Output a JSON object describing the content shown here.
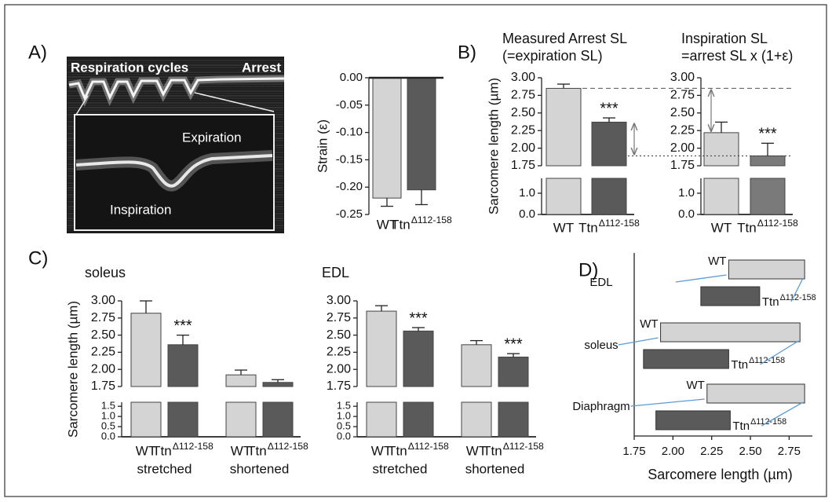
{
  "panel_labels": [
    "A)",
    "B)",
    "C)",
    "D)"
  ],
  "image": {
    "labels": [
      "Respiration cycles",
      "Arrest",
      "Expiration",
      "Inspiration"
    ]
  },
  "chart_data": [
    {
      "type": "bar",
      "ylabel": "Strain (ε)",
      "categories": [
        "WT",
        [
          "Ttn",
          "Δ112-158"
        ]
      ],
      "values": [
        -0.22,
        -0.205
      ],
      "errors": [
        0.015,
        0.027
      ],
      "colors": [
        "#d4d4d4",
        "#5a5a5a"
      ],
      "ylim": [
        -0.25,
        0
      ],
      "yticks": [
        {
          "value": 0,
          "label": "0.00"
        },
        {
          "value": -0.05,
          "label": "-0.05"
        },
        {
          "value": -0.1,
          "label": "-0.10"
        },
        {
          "value": -0.15,
          "label": "-0.15"
        },
        {
          "value": -0.2,
          "label": "-0.20"
        },
        {
          "value": -0.25,
          "label": "-0.25"
        }
      ]
    },
    {
      "type": "broken_bar",
      "title": [
        "Measured Arrest SL",
        "(=expiration SL)"
      ],
      "ylabel": "Sarcomere length (µm)",
      "categories": [
        "WT",
        [
          "Ttn",
          "Δ112-158"
        ]
      ],
      "values": [
        2.85,
        2.37
      ],
      "errors": [
        0.06,
        0.06
      ],
      "annotations": [
        null,
        "***"
      ],
      "colors": [
        "#d4d4d4",
        "#5a5a5a"
      ],
      "ylim": [
        1.75,
        3.0
      ],
      "ylim_lower": [
        0,
        1.7
      ],
      "yticks": [
        {
          "value": 1.75,
          "label": "1.75"
        },
        {
          "value": 2,
          "label": "2.00"
        },
        {
          "value": 2.25,
          "label": "2.25"
        },
        {
          "value": 2.5,
          "label": "2.50"
        },
        {
          "value": 2.75,
          "label": "2.75"
        },
        {
          "value": 3,
          "label": "3.00"
        }
      ],
      "yticks_lower": [
        {
          "value": 0,
          "label": "0.0"
        },
        {
          "value": 1,
          "label": "1.0"
        }
      ]
    },
    {
      "type": "broken_bar",
      "title": [
        "Inspiration SL",
        "=arrest SL x (1+ε)"
      ],
      "categories": [
        "WT",
        [
          "Ttn",
          "Δ112-158"
        ]
      ],
      "values": [
        2.22,
        1.89
      ],
      "errors": [
        0.15,
        0.18
      ],
      "annotations": [
        null,
        "***"
      ],
      "colors": [
        "#d4d4d4",
        "#7a7a7a"
      ],
      "ylim": [
        1.75,
        3.0
      ],
      "ylim_lower": [
        0,
        1.7
      ],
      "yticks": [
        {
          "value": 1.75,
          "label": "1.75"
        },
        {
          "value": 2,
          "label": "2.00"
        },
        {
          "value": 2.25,
          "label": "2.25"
        },
        {
          "value": 2.5,
          "label": "2.50"
        },
        {
          "value": 2.75,
          "label": "2.75"
        },
        {
          "value": 3,
          "label": "3.00"
        }
      ],
      "yticks_lower": [
        {
          "value": 0,
          "label": "0.0"
        },
        {
          "value": 1,
          "label": "1.0"
        }
      ]
    },
    {
      "type": "broken_bar",
      "title": [
        "soleus"
      ],
      "ylabel": "Sarcomere length (µm)",
      "categories": [
        "WT",
        [
          "Ttn",
          "Δ112-158"
        ],
        "WT",
        [
          "Ttn",
          "Δ112-158"
        ]
      ],
      "groups": [
        "stretched",
        "shortened"
      ],
      "values": [
        2.82,
        2.36,
        1.92,
        1.81
      ],
      "errors": [
        0.18,
        0.14,
        0.07,
        0.04
      ],
      "annotations": [
        null,
        "***",
        null,
        null
      ],
      "colors": [
        "#d4d4d4",
        "#5a5a5a",
        "#d4d4d4",
        "#5a5a5a"
      ],
      "ylim": [
        1.75,
        3.0
      ],
      "ylim_lower": [
        0,
        1.7
      ],
      "yticks": [
        {
          "value": 1.75,
          "label": "1.75"
        },
        {
          "value": 2,
          "label": "2.00"
        },
        {
          "value": 2.25,
          "label": "2.25"
        },
        {
          "value": 2.5,
          "label": "2.50"
        },
        {
          "value": 2.75,
          "label": "2.75"
        },
        {
          "value": 3,
          "label": "3.00"
        }
      ],
      "yticks_lower": [
        {
          "value": 0,
          "label": "0.0"
        },
        {
          "value": 0.5,
          "label": "0.5"
        },
        {
          "value": 1,
          "label": "1.0"
        },
        {
          "value": 1.5,
          "label": "1.5"
        }
      ]
    },
    {
      "type": "broken_bar",
      "title": [
        "EDL"
      ],
      "categories": [
        "WT",
        [
          "Ttn",
          "Δ112-158"
        ],
        "WT",
        [
          "Ttn",
          "Δ112-158"
        ]
      ],
      "groups": [
        "stretched",
        "shortened"
      ],
      "values": [
        2.85,
        2.56,
        2.36,
        2.18
      ],
      "errors": [
        0.08,
        0.05,
        0.06,
        0.05
      ],
      "annotations": [
        null,
        "***",
        null,
        "***"
      ],
      "colors": [
        "#d4d4d4",
        "#5a5a5a",
        "#d4d4d4",
        "#5a5a5a"
      ],
      "ylim": [
        1.75,
        3.0
      ],
      "ylim_lower": [
        0,
        1.7
      ],
      "yticks": [
        {
          "value": 1.75,
          "label": "1.75"
        },
        {
          "value": 2,
          "label": "2.00"
        },
        {
          "value": 2.25,
          "label": "2.25"
        },
        {
          "value": 2.5,
          "label": "2.50"
        },
        {
          "value": 2.75,
          "label": "2.75"
        },
        {
          "value": 3,
          "label": "3.00"
        }
      ],
      "yticks_lower": [
        {
          "value": 0,
          "label": "0.0"
        },
        {
          "value": 0.5,
          "label": "0.5"
        },
        {
          "value": 1,
          "label": "1.0"
        },
        {
          "value": 1.5,
          "label": "1.5"
        }
      ]
    },
    {
      "type": "range_bar",
      "xlabel": "Sarcomere length (µm)",
      "categories": [
        "EDL",
        "soleus",
        "Diaphragm"
      ],
      "series": [
        {
          "name": "WT",
          "color": "#d4d4d4",
          "values": [
            [
              2.36,
              2.85
            ],
            [
              1.92,
              2.82
            ],
            [
              2.22,
              2.85
            ]
          ]
        },
        {
          "name": [
            "Ttn",
            "Δ112-158"
          ],
          "color": "#5a5a5a",
          "values": [
            [
              2.18,
              2.56
            ],
            [
              1.81,
              2.36
            ],
            [
              1.89,
              2.37
            ]
          ]
        }
      ],
      "xlim": [
        1.75,
        2.9
      ],
      "xticks": [
        {
          "value": 1.75,
          "label": "1.75"
        },
        {
          "value": 2,
          "label": "2.00"
        },
        {
          "value": 2.25,
          "label": "2.25"
        },
        {
          "value": 2.5,
          "label": "2.50"
        },
        {
          "value": 2.75,
          "label": "2.75"
        }
      ]
    }
  ]
}
